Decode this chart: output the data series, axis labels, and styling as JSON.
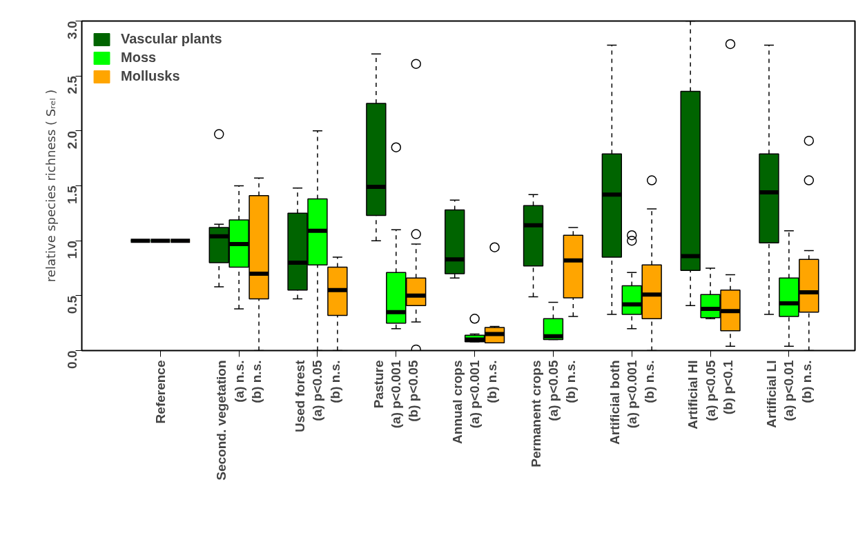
{
  "chart_data": {
    "type": "box",
    "ylabel": "relative species richness ( Sᵣₑₗ )",
    "categories": [
      "Reference",
      "Second. vegetation\n(a) n.s.\n(b) n.s.",
      "Used forest\n(a) p<0.05\n(b) n.s.",
      "Pasture\n(a) p<0.001\n(b) p<0.05",
      "Annual crops\n(a) p<0.001\n(b) n.s.",
      "Permanent crops\n(a) p<0.05\n(b) n.s.",
      "Artificial both\n(a) p<0.001\n(b) n.s.",
      "Artificial HI\n(a) p<0.05\n(b) p<0.1",
      "Artificial LI\n(a) p<0.01\n(b) n.s."
    ],
    "ylim": [
      0,
      3.0
    ],
    "yticks": [
      {
        "value": 0,
        "label": "0.0"
      },
      0.5,
      {
        "value": 1,
        "label": "1.0"
      },
      1.5,
      {
        "value": 2,
        "label": "2.0"
      },
      2.5,
      {
        "value": 3,
        "label": "3.0"
      }
    ],
    "grid": false,
    "legend": "top left",
    "series": [
      {
        "name": "Vascular plants",
        "color": "#006400",
        "boxes": [
          {
            "low": 1.0,
            "q1": 1.0,
            "median": 1.0,
            "q3": 1.0,
            "high": 1.0
          },
          {
            "low": 0.58,
            "q1": 0.8,
            "median": 1.04,
            "q3": 1.12,
            "high": 1.15,
            "outliers": [
              1.97
            ]
          },
          {
            "low": 0.47,
            "q1": 0.55,
            "median": 0.8,
            "q3": 1.25,
            "high": 1.48
          },
          {
            "low": 1.0,
            "q1": 1.23,
            "median": 1.49,
            "q3": 2.25,
            "high": 2.7
          },
          {
            "low": 0.66,
            "q1": 0.7,
            "median": 0.83,
            "q3": 1.28,
            "high": 1.37
          },
          {
            "low": 0.49,
            "q1": 0.77,
            "median": 1.14,
            "q3": 1.32,
            "high": 1.42
          },
          {
            "low": 0.33,
            "q1": 0.85,
            "median": 1.42,
            "q3": 1.79,
            "high": 2.78
          },
          {
            "low": 0.41,
            "q1": 0.73,
            "median": 0.86,
            "q3": 2.36,
            "high": 3.0
          },
          {
            "low": 0.33,
            "q1": 0.98,
            "median": 1.44,
            "q3": 1.79,
            "high": 2.78
          }
        ]
      },
      {
        "name": "Moss",
        "color": "#00ff00",
        "boxes": [
          {
            "low": 1.0,
            "q1": 1.0,
            "median": 1.0,
            "q3": 1.0,
            "high": 1.0
          },
          {
            "low": 0.38,
            "q1": 0.76,
            "median": 0.97,
            "q3": 1.19,
            "high": 1.5
          },
          {
            "low": 0.0,
            "q1": 0.78,
            "median": 1.09,
            "q3": 1.38,
            "high": 2.0
          },
          {
            "low": 0.2,
            "q1": 0.25,
            "median": 0.35,
            "q3": 0.71,
            "high": 1.1,
            "outliers": [
              1.85
            ]
          },
          {
            "low": 0.08,
            "q1": 0.08,
            "median": 0.1,
            "q3": 0.14,
            "high": 0.15,
            "outliers": [
              0.29
            ]
          },
          {
            "low": 0.1,
            "q1": 0.1,
            "median": 0.13,
            "q3": 0.29,
            "high": 0.44
          },
          {
            "low": 0.2,
            "q1": 0.33,
            "median": 0.42,
            "q3": 0.59,
            "high": 0.71,
            "outliers": [
              1.05,
              1.0
            ]
          },
          {
            "low": 0.29,
            "q1": 0.3,
            "median": 0.38,
            "q3": 0.51,
            "high": 0.75
          },
          {
            "low": 0.04,
            "q1": 0.31,
            "median": 0.43,
            "q3": 0.66,
            "high": 1.09
          }
        ]
      },
      {
        "name": "Mollusks",
        "color": "#ffa500",
        "boxes": [
          {
            "low": 1.0,
            "q1": 1.0,
            "median": 1.0,
            "q3": 1.0,
            "high": 1.0
          },
          {
            "low": 0.0,
            "q1": 0.47,
            "median": 0.7,
            "q3": 1.41,
            "high": 1.57
          },
          {
            "low": 0.0,
            "q1": 0.32,
            "median": 0.55,
            "q3": 0.76,
            "high": 0.85
          },
          {
            "low": 0.26,
            "q1": 0.41,
            "median": 0.5,
            "q3": 0.66,
            "high": 0.97,
            "outliers": [
              2.61,
              1.06,
              0.01
            ]
          },
          {
            "low": 0.07,
            "q1": 0.07,
            "median": 0.15,
            "q3": 0.21,
            "high": 0.22,
            "outliers": [
              0.94
            ]
          },
          {
            "low": 0.31,
            "q1": 0.48,
            "median": 0.82,
            "q3": 1.05,
            "high": 1.12
          },
          {
            "low": 0.0,
            "q1": 0.29,
            "median": 0.51,
            "q3": 0.78,
            "high": 1.29,
            "outliers": [
              1.55
            ]
          },
          {
            "low": 0.04,
            "q1": 0.18,
            "median": 0.36,
            "q3": 0.55,
            "high": 0.69,
            "outliers": [
              2.79
            ]
          },
          {
            "low": 0.0,
            "q1": 0.35,
            "median": 0.53,
            "q3": 0.83,
            "high": 0.91,
            "outliers": [
              1.91,
              1.55
            ]
          }
        ]
      }
    ]
  }
}
